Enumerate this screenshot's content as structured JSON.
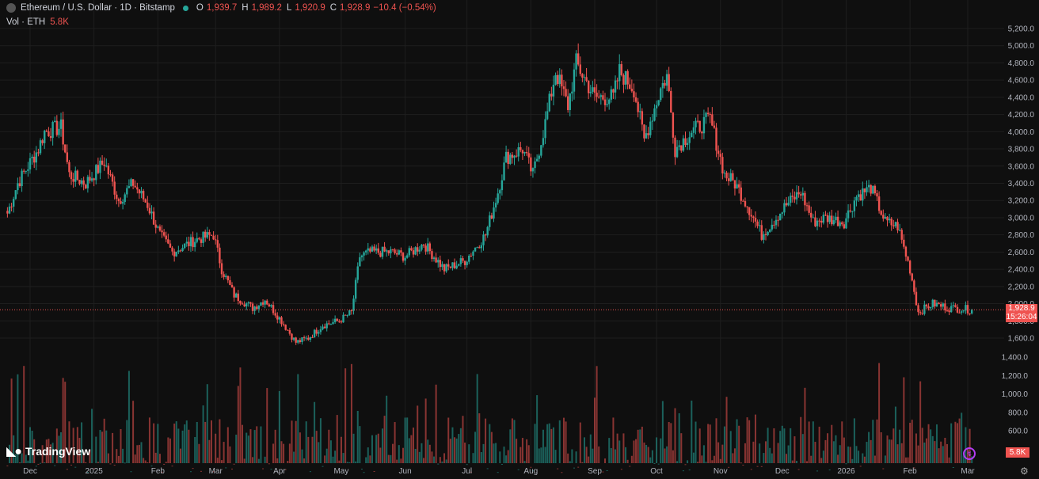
{
  "header": {
    "symbol_title": "Ethereum / U.S. Dollar · 1D · Bitstamp",
    "open_label": "O",
    "open": "1,939.7",
    "high_label": "H",
    "high": "1,989.2",
    "low_label": "L",
    "low": "1,920.9",
    "close_label": "C",
    "close": "1,928.9",
    "change": "−10.4 (−0.54%)"
  },
  "volume_legend": {
    "label": "Vol · ETH",
    "value": "5.8K"
  },
  "price_tag": {
    "price": "1,928.9",
    "countdown": "15:26:04"
  },
  "volume_tag": "5.8K",
  "branding": "TradingView",
  "colors": {
    "up": "#26a69a",
    "down": "#ef5350",
    "background": "#0f0f0f",
    "grid": "#1e1e1e",
    "text": "#b2b5be"
  },
  "chart_data": {
    "type": "candlestick",
    "price_axis": {
      "ticks": [
        1600,
        1800,
        2000,
        2200,
        2400,
        2600,
        2800,
        3000,
        3200,
        3400,
        3600,
        3800,
        4000,
        4200,
        4400,
        4600,
        4800,
        5000,
        5200
      ],
      "labels": [
        "1,600.0",
        "1,800.0",
        "2,000.0",
        "2,200.0",
        "2,400.0",
        "2,600.0",
        "2,800.0",
        "3,000.0",
        "3,200.0",
        "3,400.0",
        "3,600.0",
        "3,800.0",
        "4,000.0",
        "4,200.0",
        "4,400.0",
        "4,600.0",
        "4,800.0",
        "5,000.0",
        "5,200.0"
      ]
    },
    "volume_axis": {
      "ticks": [
        600,
        800,
        1000,
        1200,
        1400
      ],
      "labels": [
        "600.0",
        "800.0",
        "1,000.0",
        "1,200.0",
        "1,400.0"
      ]
    },
    "time_axis": {
      "labels": [
        "Dec",
        "2025",
        "Feb",
        "Mar",
        "Apr",
        "May",
        "Jun",
        "Jul",
        "Aug",
        "Sep",
        "Oct",
        "Nov",
        "Dec",
        "2026",
        "Feb",
        "Mar"
      ],
      "dates": [
        "2024-12-01",
        "2025-01-01",
        "2025-02-01",
        "2025-03-01",
        "2025-04-01",
        "2025-05-01",
        "2025-06-01",
        "2025-07-01",
        "2025-08-01",
        "2025-09-01",
        "2025-10-01",
        "2025-11-01",
        "2025-12-01",
        "2026-01-01",
        "2026-02-01",
        "2026-03-01"
      ]
    },
    "close_anchors": [
      [
        "2024-11-20",
        3050
      ],
      [
        "2024-11-25",
        3400
      ],
      [
        "2024-12-05",
        3800
      ],
      [
        "2024-12-08",
        4000
      ],
      [
        "2024-12-16",
        4050
      ],
      [
        "2024-12-20",
        3500
      ],
      [
        "2024-12-28",
        3400
      ],
      [
        "2025-01-06",
        3650
      ],
      [
        "2025-01-13",
        3200
      ],
      [
        "2025-01-20",
        3400
      ],
      [
        "2025-01-27",
        3150
      ],
      [
        "2025-02-02",
        2800
      ],
      [
        "2025-02-08",
        2600
      ],
      [
        "2025-02-20",
        2750
      ],
      [
        "2025-02-28",
        2800
      ],
      [
        "2025-03-04",
        2400
      ],
      [
        "2025-03-10",
        2100
      ],
      [
        "2025-03-19",
        1950
      ],
      [
        "2025-03-25",
        2050
      ],
      [
        "2025-04-02",
        1800
      ],
      [
        "2025-04-09",
        1550
      ],
      [
        "2025-04-15",
        1600
      ],
      [
        "2025-04-22",
        1750
      ],
      [
        "2025-04-30",
        1800
      ],
      [
        "2025-05-06",
        1900
      ],
      [
        "2025-05-10",
        2550
      ],
      [
        "2025-05-15",
        2600
      ],
      [
        "2025-05-25",
        2600
      ],
      [
        "2025-06-01",
        2550
      ],
      [
        "2025-06-10",
        2700
      ],
      [
        "2025-06-20",
        2400
      ],
      [
        "2025-06-30",
        2500
      ],
      [
        "2025-07-10",
        2800
      ],
      [
        "2025-07-16",
        3300
      ],
      [
        "2025-07-20",
        3700
      ],
      [
        "2025-07-28",
        3800
      ],
      [
        "2025-08-02",
        3500
      ],
      [
        "2025-08-08",
        4100
      ],
      [
        "2025-08-13",
        4700
      ],
      [
        "2025-08-19",
        4300
      ],
      [
        "2025-08-23",
        4800
      ],
      [
        "2025-09-01",
        4400
      ],
      [
        "2025-09-10",
        4400
      ],
      [
        "2025-09-13",
        4700
      ],
      [
        "2025-09-20",
        4500
      ],
      [
        "2025-09-25",
        3900
      ],
      [
        "2025-10-03",
        4500
      ],
      [
        "2025-10-06",
        4650
      ],
      [
        "2025-10-10",
        3800
      ],
      [
        "2025-10-18",
        4000
      ],
      [
        "2025-10-27",
        4150
      ],
      [
        "2025-11-03",
        3500
      ],
      [
        "2025-11-08",
        3400
      ],
      [
        "2025-11-14",
        3150
      ],
      [
        "2025-11-21",
        2800
      ],
      [
        "2025-11-28",
        3000
      ],
      [
        "2025-12-03",
        3150
      ],
      [
        "2025-12-10",
        3300
      ],
      [
        "2025-12-16",
        2950
      ],
      [
        "2025-12-22",
        3000
      ],
      [
        "2025-12-31",
        2950
      ],
      [
        "2026-01-06",
        3250
      ],
      [
        "2026-01-13",
        3350
      ],
      [
        "2026-01-20",
        2950
      ],
      [
        "2026-01-26",
        2900
      ],
      [
        "2026-02-01",
        2400
      ],
      [
        "2026-02-05",
        1900
      ],
      [
        "2026-02-12",
        2000
      ],
      [
        "2026-02-20",
        1950
      ],
      [
        "2026-02-27",
        1940
      ],
      [
        "2026-03-03",
        1929
      ]
    ]
  }
}
